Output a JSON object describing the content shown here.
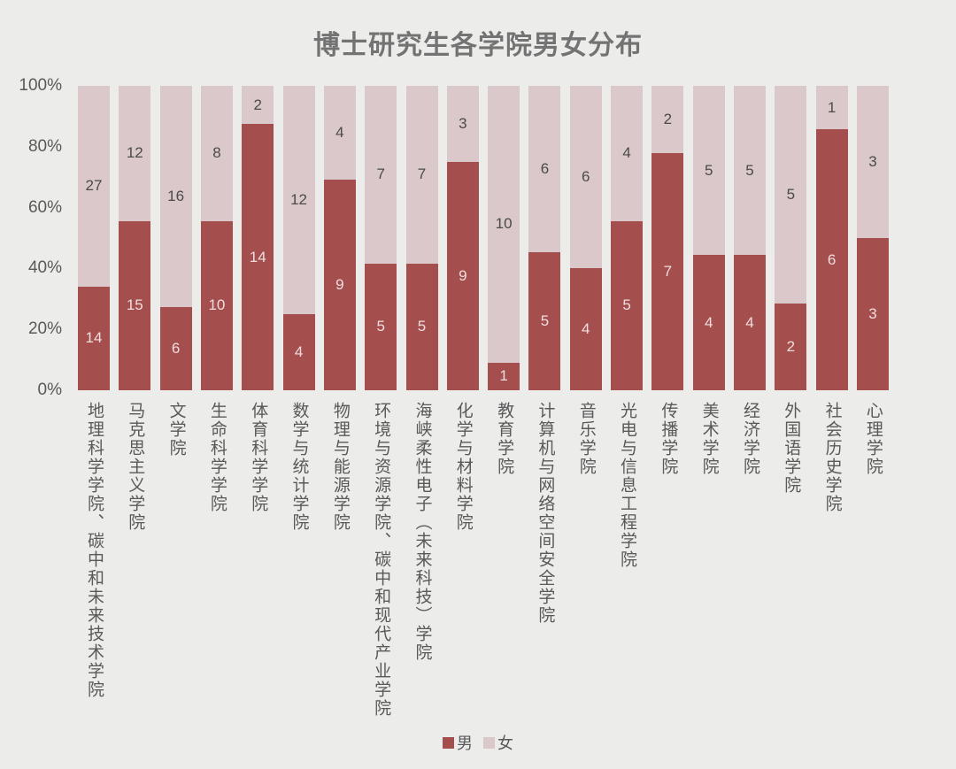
{
  "title": "博士研究生各学院男女分布",
  "legend": {
    "male": "男",
    "female": "女"
  },
  "colors": {
    "male": "#A44E4D",
    "female": "#DBC8CA",
    "background": "#ECECEB",
    "value_label_on_male": "#F0DEDF",
    "value_label_on_female": "#4A4A4A",
    "axis_text": "#595959",
    "title_text": "#737373"
  },
  "y_axis": {
    "ticks": [
      "100%",
      "80%",
      "60%",
      "40%",
      "20%",
      "0%"
    ],
    "min": 0,
    "max": 100
  },
  "chart_data": {
    "type": "bar",
    "stacked": true,
    "percent": true,
    "title": "博士研究生各学院男女分布",
    "xlabel": "",
    "ylabel": "",
    "ylim": [
      0,
      100
    ],
    "grid": false,
    "legend_position": "bottom",
    "categories": [
      "地理科学学院、碳中和未来技术学院",
      "马克思主义学院",
      "文学院",
      "生命科学学院",
      "体育科学学院",
      "数学与统计学院",
      "物理与能源学院",
      "环境与资源学院、碳中和现代产业学院",
      "海峡柔性电子（未来科技）学院",
      "化学与材料学院",
      "教育学院",
      "计算机与网络空间安全学院",
      "音乐学院",
      "光电与信息工程学院",
      "传播学院",
      "美术学院",
      "经济学院",
      "外国语学院",
      "社会历史学院",
      "心理学院"
    ],
    "series": [
      {
        "name": "男",
        "values": [
          14,
          15,
          6,
          10,
          14,
          4,
          9,
          5,
          5,
          9,
          1,
          5,
          4,
          5,
          7,
          4,
          4,
          2,
          6,
          3
        ]
      },
      {
        "name": "女",
        "values": [
          27,
          12,
          16,
          8,
          2,
          12,
          4,
          7,
          7,
          3,
          10,
          6,
          6,
          4,
          2,
          5,
          5,
          5,
          1,
          3
        ]
      }
    ]
  }
}
